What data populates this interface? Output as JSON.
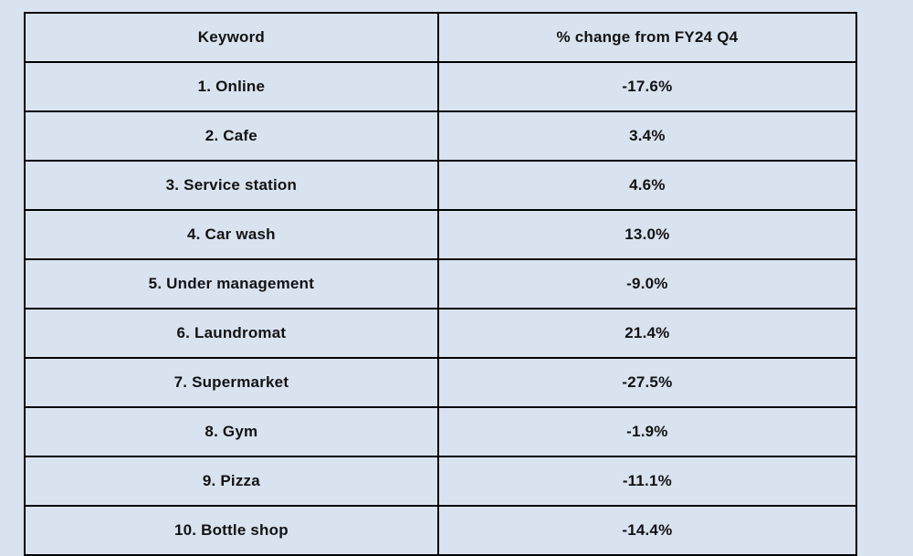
{
  "chart_data": {
    "type": "table",
    "columns": [
      "Keyword",
      "% change from FY24 Q4"
    ],
    "rows": [
      [
        "1. Online",
        "-17.6%"
      ],
      [
        "2. Cafe",
        "3.4%"
      ],
      [
        "3. Service station",
        "4.6%"
      ],
      [
        "4. Car wash",
        "13.0%"
      ],
      [
        "5. Under management",
        "-9.0%"
      ],
      [
        "6. Laundromat",
        "21.4%"
      ],
      [
        "7. Supermarket",
        "-27.5%"
      ],
      [
        "8. Gym",
        "-1.9%"
      ],
      [
        "9. Pizza",
        "-11.1%"
      ],
      [
        "10. Bottle shop",
        "-14.4%"
      ]
    ]
  },
  "colors": {
    "background": "#d9e3f0",
    "border": "#000000",
    "text": "#121212"
  }
}
